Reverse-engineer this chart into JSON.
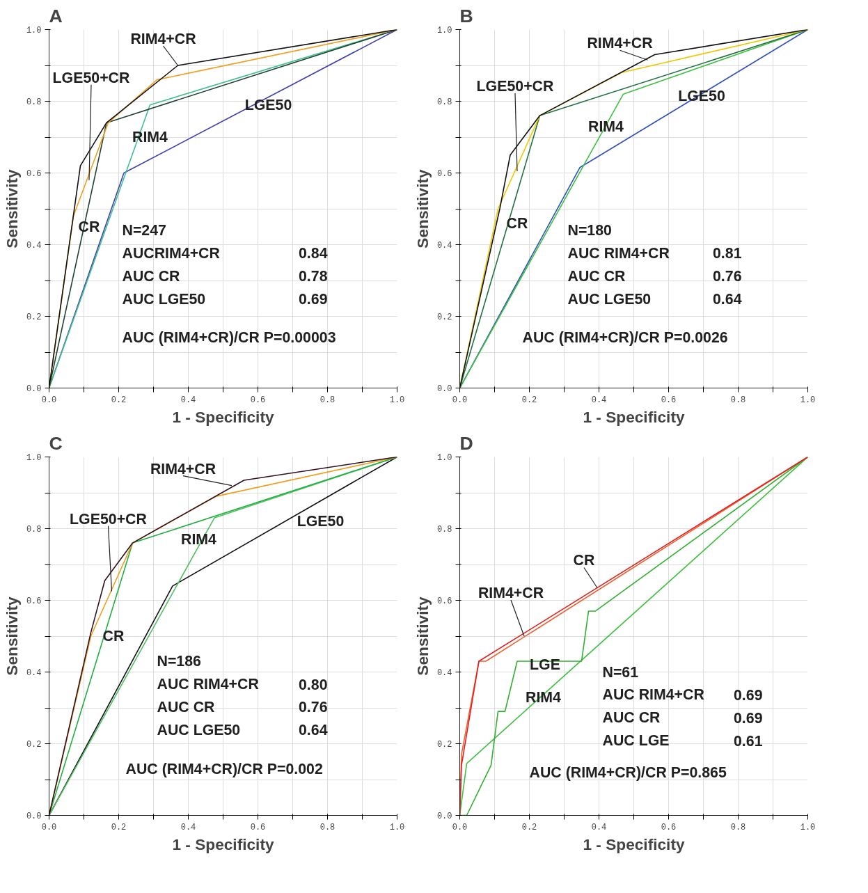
{
  "chart_data": [
    {
      "type": "line",
      "title": "A",
      "xlabel": "1 - Specificity",
      "ylabel": "Sensitivity",
      "xlim": [
        0,
        1
      ],
      "ylim": [
        0,
        1
      ],
      "grid": true,
      "xticks": [
        {
          "value": 0,
          "label": "0.0"
        },
        {
          "value": 0.1,
          "label": null
        },
        {
          "value": 0.2,
          "label": "0.2"
        },
        {
          "value": 0.3,
          "label": null
        },
        {
          "value": 0.4,
          "label": "0.4"
        },
        {
          "value": 0.5,
          "label": null
        },
        {
          "value": 0.6,
          "label": "0.6"
        },
        {
          "value": 0.7,
          "label": null
        },
        {
          "value": 0.8,
          "label": "0.8"
        },
        {
          "value": 0.9,
          "label": null
        },
        {
          "value": 1,
          "label": "1.0"
        }
      ],
      "yticks": [
        {
          "value": 0,
          "label": "0.0"
        },
        {
          "value": 0.1,
          "label": null
        },
        {
          "value": 0.2,
          "label": "0.2"
        },
        {
          "value": 0.3,
          "label": null
        },
        {
          "value": 0.4,
          "label": "0.4"
        },
        {
          "value": 0.5,
          "label": null
        },
        {
          "value": 0.6,
          "label": "0.6"
        },
        {
          "value": 0.7,
          "label": null
        },
        {
          "value": 0.8,
          "label": "0.8"
        },
        {
          "value": 0.9,
          "label": null
        },
        {
          "value": 1,
          "label": "1.0"
        }
      ],
      "series": [
        {
          "color": "#4040b0",
          "x": [
            0,
            0.215,
            1
          ],
          "values": [
            0,
            0.6,
            1
          ]
        },
        {
          "color": "#40c090",
          "x": [
            0,
            0.29,
            1
          ],
          "values": [
            0,
            0.79,
            1
          ]
        },
        {
          "color": "#204030",
          "x": [
            0,
            0.165,
            1
          ],
          "values": [
            0,
            0.74,
            1
          ]
        },
        {
          "color": "#f0a020",
          "x": [
            0,
            0.07,
            0.17,
            0.31,
            1
          ],
          "values": [
            0,
            0.48,
            0.74,
            0.86,
            1
          ]
        },
        {
          "color": "#101010",
          "x": [
            0,
            0.09,
            0.165,
            0.37,
            1
          ],
          "values": [
            0,
            0.62,
            0.74,
            0.9,
            1
          ]
        }
      ],
      "annotations": [
        {
          "text": "RIM4+CR",
          "x": 0.37,
          "y": 0.9
        },
        {
          "text": "LGE50+CR",
          "x": 0.115,
          "y": 0.58
        },
        "CR",
        "RIM4",
        "LGE50",
        "N=247",
        "AUCRIM4+CR",
        "0.84",
        "AUC CR",
        "0.78",
        "AUC LGE50",
        "0.69",
        "AUC (RIM4+CR)/CR P=0.00003"
      ]
    },
    {
      "type": "line",
      "title": "B",
      "xlabel": "1 - Specificity",
      "ylabel": "Sensitivity",
      "xlim": [
        0,
        1
      ],
      "ylim": [
        0,
        1
      ],
      "grid": true,
      "xticks": [
        {
          "value": 0,
          "label": "0.0"
        },
        {
          "value": 0.1,
          "label": null
        },
        {
          "value": 0.2,
          "label": "0.2"
        },
        {
          "value": 0.3,
          "label": null
        },
        {
          "value": 0.4,
          "label": "0.4"
        },
        {
          "value": 0.5,
          "label": null
        },
        {
          "value": 0.6,
          "label": "0.6"
        },
        {
          "value": 0.7,
          "label": null
        },
        {
          "value": 0.8,
          "label": "0.8"
        },
        {
          "value": 0.9,
          "label": null
        },
        {
          "value": 1,
          "label": "1.0"
        }
      ],
      "yticks": [
        {
          "value": 0,
          "label": "0.0"
        },
        {
          "value": 0.1,
          "label": null
        },
        {
          "value": 0.2,
          "label": "0.2"
        },
        {
          "value": 0.3,
          "label": null
        },
        {
          "value": 0.4,
          "label": "0.4"
        },
        {
          "value": 0.5,
          "label": null
        },
        {
          "value": 0.6,
          "label": "0.6"
        },
        {
          "value": 0.7,
          "label": null
        },
        {
          "value": 0.8,
          "label": "0.8"
        },
        {
          "value": 0.9,
          "label": null
        },
        {
          "value": 1,
          "label": "1.0"
        }
      ],
      "series": [
        {
          "color": "#3050c0",
          "x": [
            0,
            0.345,
            1
          ],
          "values": [
            0,
            0.615,
            1
          ]
        },
        {
          "color": "#40c040",
          "x": [
            0,
            0.47,
            1
          ],
          "values": [
            0,
            0.82,
            1
          ]
        },
        {
          "color": "#207040",
          "x": [
            0,
            0.23,
            1
          ],
          "values": [
            0,
            0.76,
            1
          ]
        },
        {
          "color": "#f0c800",
          "x": [
            0,
            0.11,
            0.23,
            0.465,
            1
          ],
          "values": [
            0,
            0.5,
            0.76,
            0.88,
            1
          ]
        },
        {
          "color": "#101010",
          "x": [
            0,
            0.115,
            0.145,
            0.23,
            0.56,
            1
          ],
          "values": [
            0,
            0.5,
            0.65,
            0.76,
            0.93,
            1
          ]
        }
      ],
      "annotations": [
        {
          "text": "RIM4+CR",
          "x": 0.54,
          "y": 0.915
        },
        {
          "text": "LGE50+CR",
          "x": 0.165,
          "y": 0.605
        },
        "CR",
        "RIM4",
        "LGE50",
        "N=180",
        "AUC RIM4+CR",
        "0.81",
        "AUC CR",
        "0.76",
        "AUC LGE50",
        "0.64",
        "AUC (RIM4+CR)/CR P=0.0026"
      ]
    },
    {
      "type": "line",
      "title": "C",
      "xlabel": "1 - Specificity",
      "ylabel": "Sensitivity",
      "xlim": [
        0,
        1
      ],
      "ylim": [
        0,
        1
      ],
      "grid": true,
      "xticks": [
        {
          "value": 0,
          "label": "0.0"
        },
        {
          "value": 0.1,
          "label": null
        },
        {
          "value": 0.2,
          "label": "0.2"
        },
        {
          "value": 0.3,
          "label": null
        },
        {
          "value": 0.4,
          "label": "0.4"
        },
        {
          "value": 0.5,
          "label": null
        },
        {
          "value": 0.6,
          "label": "0.6"
        },
        {
          "value": 0.7,
          "label": null
        },
        {
          "value": 0.8,
          "label": "0.8"
        },
        {
          "value": 0.9,
          "label": null
        },
        {
          "value": 1,
          "label": "1.0"
        }
      ],
      "yticks": [
        {
          "value": 0,
          "label": "0.0"
        },
        {
          "value": 0.1,
          "label": null
        },
        {
          "value": 0.2,
          "label": "0.2"
        },
        {
          "value": 0.3,
          "label": null
        },
        {
          "value": 0.4,
          "label": "0.4"
        },
        {
          "value": 0.5,
          "label": null
        },
        {
          "value": 0.6,
          "label": "0.6"
        },
        {
          "value": 0.7,
          "label": null
        },
        {
          "value": 0.8,
          "label": "0.8"
        },
        {
          "value": 0.9,
          "label": null
        },
        {
          "value": 1,
          "label": "1.0"
        }
      ],
      "series": [
        {
          "color": "#101018",
          "x": [
            0,
            0.355,
            1
          ],
          "values": [
            0,
            0.64,
            1
          ]
        },
        {
          "color": "#50c060",
          "x": [
            0,
            0.475,
            1
          ],
          "values": [
            0,
            0.83,
            1
          ]
        },
        {
          "color": "#20b040",
          "x": [
            0,
            0.24,
            1
          ],
          "values": [
            0,
            0.76,
            1
          ]
        },
        {
          "color": "#f0a020",
          "x": [
            0,
            0.12,
            0.24,
            0.48,
            1
          ],
          "values": [
            0,
            0.5,
            0.76,
            0.89,
            1
          ]
        },
        {
          "color": "#301020",
          "x": [
            0,
            0.12,
            0.16,
            0.24,
            0.56,
            1
          ],
          "values": [
            0,
            0.51,
            0.655,
            0.76,
            0.935,
            1
          ]
        }
      ],
      "annotations": [
        {
          "text": "RIM4+CR",
          "x": 0.525,
          "y": 0.92
        },
        {
          "text": "LGE50+CR",
          "x": 0.18,
          "y": 0.625
        },
        "CR",
        "RIM4",
        "LGE50",
        "N=186",
        "AUC RIM4+CR",
        "0.80",
        "AUC CR",
        "0.76",
        "AUC LGE50",
        "0.64",
        "AUC (RIM4+CR)/CR P=0.002"
      ]
    },
    {
      "type": "line",
      "title": "D",
      "xlabel": "1 - Specificity",
      "ylabel": "Sensitivity",
      "xlim": [
        0,
        1
      ],
      "ylim": [
        0,
        1
      ],
      "grid": true,
      "xticks": [
        {
          "value": 0,
          "label": "0.0"
        },
        {
          "value": 0.1,
          "label": null
        },
        {
          "value": 0.2,
          "label": "0.2"
        },
        {
          "value": 0.3,
          "label": null
        },
        {
          "value": 0.4,
          "label": "0.4"
        },
        {
          "value": 0.5,
          "label": null
        },
        {
          "value": 0.6,
          "label": "0.6"
        },
        {
          "value": 0.7,
          "label": null
        },
        {
          "value": 0.8,
          "label": "0.8"
        },
        {
          "value": 0.9,
          "label": null
        },
        {
          "value": 1,
          "label": "1.0"
        }
      ],
      "yticks": [
        {
          "value": 0,
          "label": "0.0"
        },
        {
          "value": 0.1,
          "label": null
        },
        {
          "value": 0.2,
          "label": "0.2"
        },
        {
          "value": 0.3,
          "label": null
        },
        {
          "value": 0.4,
          "label": "0.4"
        },
        {
          "value": 0.5,
          "label": null
        },
        {
          "value": 0.6,
          "label": "0.6"
        },
        {
          "value": 0.7,
          "label": null
        },
        {
          "value": 0.8,
          "label": "0.8"
        },
        {
          "value": 0.9,
          "label": null
        },
        {
          "value": 1,
          "label": "1.0"
        }
      ],
      "series": [
        {
          "color": "#40c040",
          "x": [
            0,
            0.02,
            1
          ],
          "values": [
            0,
            0.145,
            1
          ]
        },
        {
          "color": "#30b030",
          "x": [
            0,
            0.02,
            0.09,
            0.11,
            0.13,
            0.165,
            0.35,
            0.37,
            0.39,
            1
          ],
          "values": [
            0,
            0,
            0.14,
            0.29,
            0.29,
            0.43,
            0.43,
            0.57,
            0.57,
            1
          ]
        },
        {
          "color": "#f06030",
          "x": [
            0,
            0.005,
            0.055,
            0.075,
            1
          ],
          "values": [
            0,
            0.17,
            0.43,
            0.43,
            1
          ]
        },
        {
          "color": "#e02020",
          "x": [
            0,
            0.005,
            0.055,
            1
          ],
          "values": [
            0,
            0.14,
            0.43,
            1
          ]
        }
      ],
      "annotations": [
        {
          "text": "CR",
          "x": 0.395,
          "y": 0.635
        },
        {
          "text": "RIM4+CR",
          "x": 0.185,
          "y": 0.5
        },
        "LGE",
        "RIM4",
        "N=61",
        "AUC RIM4+CR",
        "0.69",
        "AUC CR",
        "0.69",
        "AUC LGE",
        "0.61",
        "AUC (RIM4+CR)/CR P=0.865"
      ]
    }
  ]
}
